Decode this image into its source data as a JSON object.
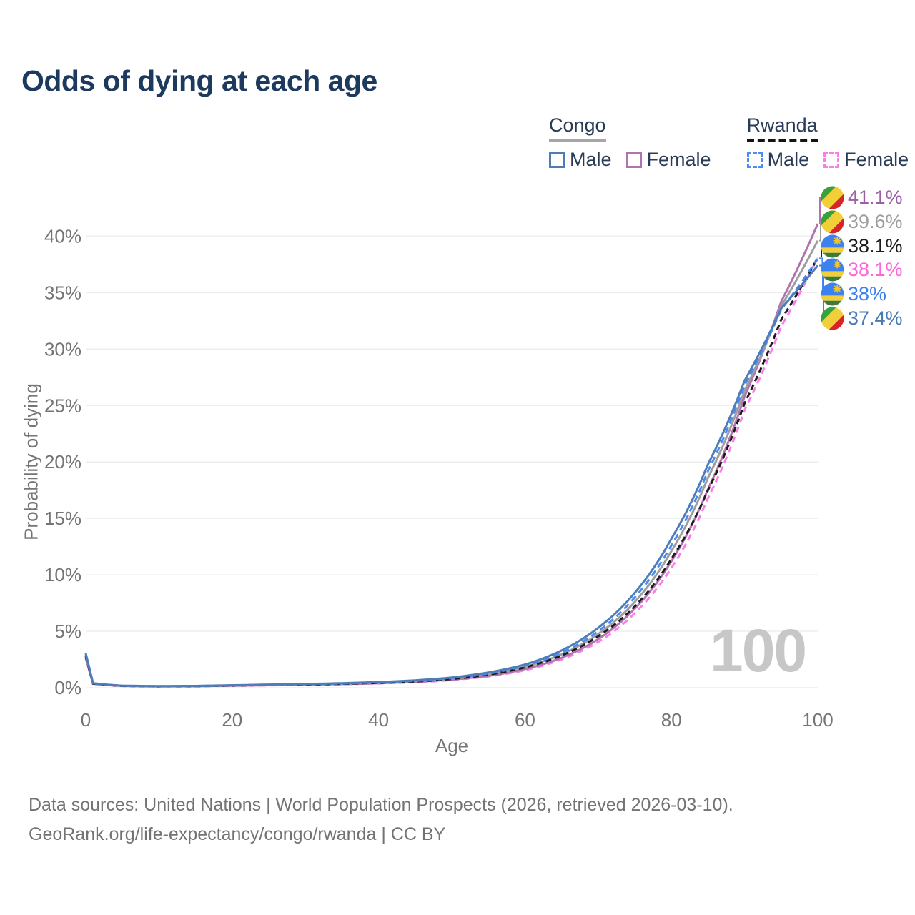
{
  "chart": {
    "title": "Odds of dying at each age",
    "watermark": "100",
    "x_axis": {
      "label": "Age",
      "ticks": [
        0,
        20,
        40,
        60,
        80,
        100
      ],
      "min": 0,
      "max": 100
    },
    "y_axis": {
      "label": "Probability of dying",
      "ticks": [
        "0%",
        "5%",
        "10%",
        "15%",
        "20%",
        "25%",
        "30%",
        "35%",
        "40%"
      ],
      "tick_values": [
        0,
        5,
        10,
        15,
        20,
        25,
        30,
        35,
        40
      ],
      "min": 0,
      "max": 40
    }
  },
  "legend": {
    "groups": [
      {
        "label": "Congo",
        "line_color": "#9e9e9e",
        "line_style": "solid",
        "items": [
          {
            "label": "Male",
            "color": "#4e7db7",
            "dashed": false
          },
          {
            "label": "Female",
            "color": "#b173af",
            "dashed": false
          }
        ]
      },
      {
        "label": "Rwanda",
        "line_color": "#1c1c1c",
        "line_style": "dashed",
        "items": [
          {
            "label": "Male",
            "color": "#4b8bf3",
            "dashed": true
          },
          {
            "label": "Female",
            "color": "#fb7de9",
            "dashed": true
          }
        ]
      }
    ]
  },
  "chart_data": {
    "type": "line",
    "title": "Odds of dying at each age",
    "xlabel": "Age",
    "ylabel": "Probability of dying",
    "xlim": [
      0,
      100
    ],
    "ylim": [
      0,
      42
    ],
    "unit": "%",
    "grid": "horizontal",
    "ages": [
      0,
      1,
      5,
      10,
      15,
      20,
      25,
      30,
      35,
      40,
      45,
      50,
      55,
      60,
      65,
      70,
      75,
      80,
      85,
      90,
      95,
      100
    ],
    "series": [
      {
        "key": "rwanda_female",
        "name": "Rwanda Female",
        "color": "#fb7de9",
        "dash": "9 6",
        "values": [
          2.6,
          0.34,
          0.15,
          0.11,
          0.13,
          0.17,
          0.21,
          0.25,
          0.3,
          0.38,
          0.48,
          0.68,
          1.0,
          1.55,
          2.5,
          4.05,
          6.6,
          10.6,
          16.8,
          24.6,
          32.0,
          38.1
        ]
      },
      {
        "key": "congo_female",
        "name": "Congo Female",
        "color": "#b173af",
        "dash": null,
        "values": [
          2.65,
          0.35,
          0.16,
          0.12,
          0.14,
          0.18,
          0.22,
          0.27,
          0.32,
          0.4,
          0.52,
          0.72,
          1.05,
          1.65,
          2.65,
          4.3,
          7.0,
          11.2,
          17.6,
          25.8,
          34.2,
          41.1
        ]
      },
      {
        "key": "congo_total",
        "name": "Congo",
        "color": "#9e9e9e",
        "dash": null,
        "values": [
          2.85,
          0.37,
          0.17,
          0.13,
          0.15,
          0.2,
          0.25,
          0.3,
          0.36,
          0.45,
          0.58,
          0.8,
          1.2,
          1.85,
          2.95,
          4.75,
          7.6,
          12.1,
          18.6,
          26.3,
          33.8,
          39.6
        ]
      },
      {
        "key": "rwanda_total",
        "name": "Rwanda",
        "color": "#1c1c1c",
        "dash": "8 5",
        "values": [
          2.8,
          0.36,
          0.16,
          0.12,
          0.14,
          0.19,
          0.24,
          0.29,
          0.34,
          0.43,
          0.55,
          0.77,
          1.15,
          1.8,
          2.85,
          4.55,
          7.2,
          11.4,
          17.5,
          25.2,
          32.6,
          38.1
        ]
      },
      {
        "key": "rwanda_male",
        "name": "Rwanda Male",
        "color": "#4b8bf3",
        "dash": "9 6",
        "values": [
          2.95,
          0.38,
          0.17,
          0.13,
          0.15,
          0.2,
          0.26,
          0.31,
          0.37,
          0.47,
          0.6,
          0.85,
          1.25,
          1.95,
          3.1,
          5.0,
          8.0,
          12.6,
          19.2,
          26.8,
          33.5,
          38.0
        ]
      },
      {
        "key": "congo_male",
        "name": "Congo Male",
        "color": "#4e7db7",
        "dash": null,
        "values": [
          3.05,
          0.4,
          0.18,
          0.14,
          0.16,
          0.22,
          0.28,
          0.33,
          0.4,
          0.5,
          0.65,
          0.9,
          1.35,
          2.05,
          3.3,
          5.3,
          8.4,
          13.2,
          19.8,
          27.2,
          33.6,
          37.4
        ]
      }
    ]
  },
  "end_labels": [
    {
      "value": "41.1%",
      "numeric": 41.1,
      "series_key": "congo_female",
      "country": "Congo",
      "flag": "congo",
      "color": "#9c5ea6"
    },
    {
      "value": "39.6%",
      "numeric": 39.6,
      "series_key": "congo_total",
      "country": "Congo",
      "flag": "congo",
      "color": "#9e9e9e"
    },
    {
      "value": "38.1%",
      "numeric": 38.1,
      "series_key": "rwanda_total",
      "country": "Rwanda",
      "flag": "rwanda",
      "color": "#1c1c1c"
    },
    {
      "value": "38.1%",
      "numeric": 38.1,
      "series_key": "rwanda_female",
      "country": "Rwanda",
      "flag": "rwanda",
      "color": "#ff64dd"
    },
    {
      "value": "38%",
      "numeric": 38.0,
      "series_key": "rwanda_male",
      "country": "Rwanda",
      "flag": "rwanda",
      "color": "#3d7ef0"
    },
    {
      "value": "37.4%",
      "numeric": 37.4,
      "series_key": "congo_male",
      "country": "Congo",
      "flag": "congo",
      "color": "#4a7ab8"
    }
  ],
  "footer": {
    "line1": "Data sources: United Nations | World Population Prospects (2026, retrieved 2026-03-10).",
    "line2": "GeoRank.org/life-expectancy/congo/rwanda | CC BY"
  }
}
